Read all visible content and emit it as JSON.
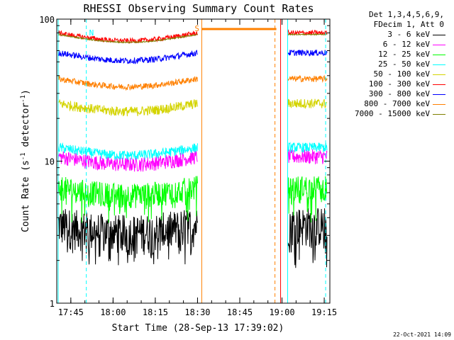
{
  "chart_data": {
    "type": "line",
    "title": "RHESSI Observing Summary Count Rates",
    "xlabel": "Start Time (28-Sep-13 17:39:02)",
    "ylabel_parts": [
      "Count Rate (s",
      "-1",
      " detector",
      "-1",
      ")"
    ],
    "yscale": "log",
    "ylim": [
      1,
      100
    ],
    "ytick_labels": [
      "1",
      "10",
      "100"
    ],
    "xlim_minutes_from_1740": [
      0,
      97
    ],
    "xtick_labels": [
      "17:45",
      "18:00",
      "18:15",
      "18:30",
      "18:45",
      "19:00",
      "19:15"
    ],
    "xtick_minutes_from_1740": [
      5,
      20,
      35,
      50,
      65,
      80,
      95
    ],
    "legend": {
      "header": [
        "Det 1,3,4,5,6,9,",
        "FDecim 1, Att 0"
      ],
      "placement": "right",
      "entries": [
        "3 - 6 keV",
        "6 - 12 keV",
        "12 - 25 keV",
        "25 - 50 keV",
        "50 - 100 keV",
        "100 - 300 keV",
        "300 - 800 keV",
        "800 - 7000 keV",
        "7000 - 15000 keV"
      ]
    },
    "series": [
      {
        "name": "3 - 6 keV",
        "color": "#000000",
        "level": 3.6,
        "spread": 0.32,
        "drop_to": 2.2
      },
      {
        "name": "6 - 12 keV",
        "color": "#ff00ff",
        "level": 10.8,
        "spread": 0.12
      },
      {
        "name": "12 - 25 keV",
        "color": "#00ff00",
        "level": 6.6,
        "spread": 0.2,
        "drop_to": 4.6
      },
      {
        "name": "25 - 50 keV",
        "color": "#00ffff",
        "level": 12.5,
        "spread": 0.08
      },
      {
        "name": "50 - 100 keV",
        "color": "#d4d400",
        "level": 25.5,
        "spread": 0.08
      },
      {
        "name": "100 - 300 keV",
        "color": "#ff0000",
        "level": 80,
        "spread": 0.04
      },
      {
        "name": "300 - 800 keV",
        "color": "#0000ff",
        "level": 58,
        "spread": 0.05
      },
      {
        "name": "800 - 7000 keV",
        "color": "#ff8000",
        "level": 38,
        "spread": 0.05
      },
      {
        "name": "7000 - 15000 keV",
        "color": "#808000",
        "level": 78,
        "spread": 0.01
      }
    ],
    "data_segments_minutes_from_1740": [
      [
        0.5,
        50
      ],
      [
        82,
        96
      ]
    ],
    "saa_marker": {
      "label": "S",
      "start_min": 51.5,
      "end_min": 78,
      "color": "#ff8000"
    },
    "night_marker": {
      "label": "N",
      "min": 10.5,
      "color": "#00ffff"
    },
    "dashed_lines_min": [
      {
        "min": 10.5,
        "color": "#00ffff"
      },
      {
        "min": 95.5,
        "color": "#00ffff"
      },
      {
        "min": 77.5,
        "color": "#ff8000"
      }
    ],
    "solid_lines_min": [
      {
        "min": 0.5,
        "color": "#00ffff"
      },
      {
        "min": 82,
        "color": "#00ffff"
      },
      {
        "min": 51.5,
        "color": "#ff8000"
      },
      {
        "min": 79.5,
        "color": "#ff0000"
      }
    ],
    "grid": false
  },
  "timestamp": "22-Oct-2021 14:09"
}
